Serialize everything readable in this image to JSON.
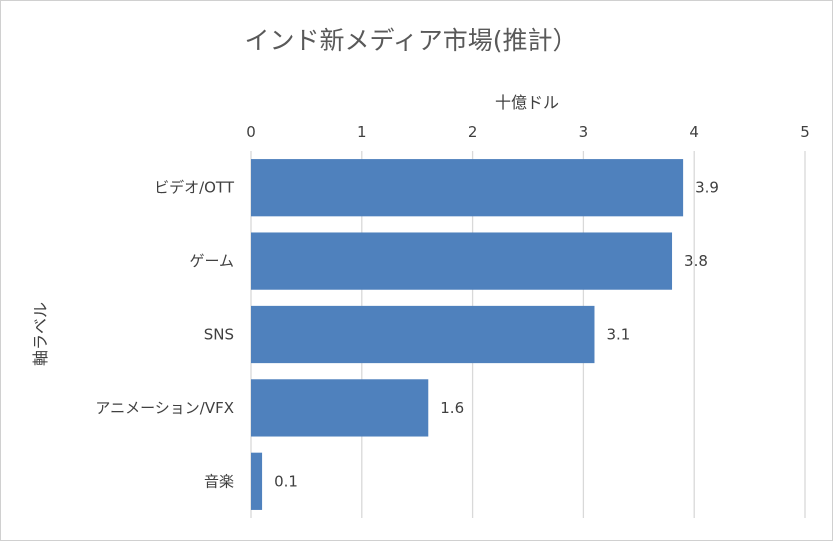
{
  "chart_data": {
    "type": "bar",
    "orientation": "horizontal",
    "title": "インド新メディア市場(推計）",
    "xlabel": "十億ドル",
    "ylabel": "軸ラベル",
    "xlim": [
      0,
      5
    ],
    "x_ticks": [
      "0",
      "1",
      "2",
      "3",
      "4",
      "5"
    ],
    "categories": [
      "ビデオ/OTT",
      "ゲーム",
      "SNS",
      "アニメーション/VFX",
      "音楽"
    ],
    "values": [
      3.9,
      3.8,
      3.1,
      1.6,
      0.1
    ],
    "data_labels": [
      "3.9",
      "3.8",
      "3.1",
      "1.6",
      "0.1"
    ],
    "bar_color": "#4f81bd",
    "grid": "vertical",
    "x_axis_position": "top",
    "legend": "none"
  }
}
